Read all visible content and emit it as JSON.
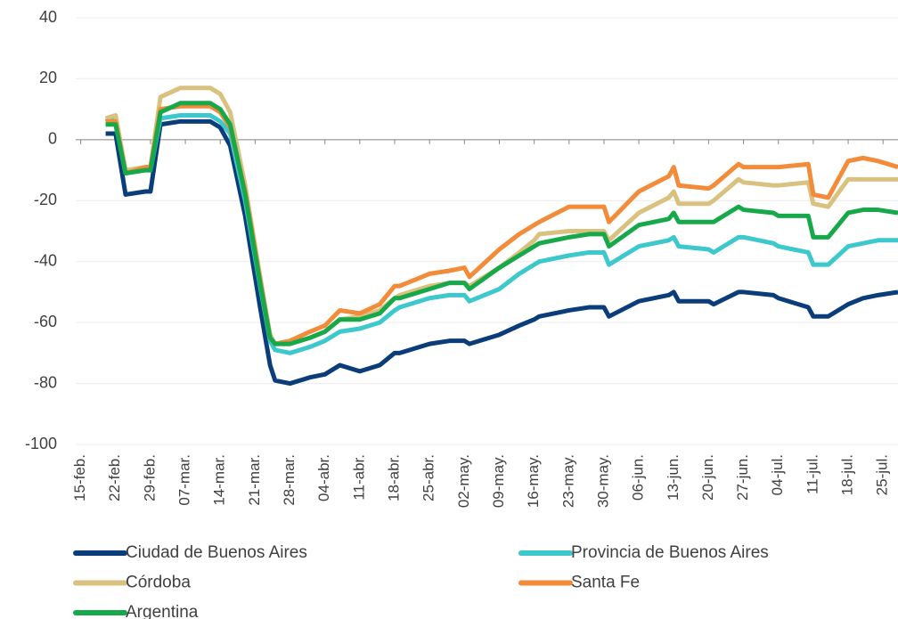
{
  "chart_data": {
    "type": "line",
    "x": [
      5,
      7,
      9,
      13,
      14,
      16,
      20,
      26,
      28,
      30,
      33,
      36,
      38,
      39,
      42,
      46,
      49,
      52,
      56,
      60,
      63,
      64,
      70,
      74,
      77,
      78,
      84,
      88,
      91,
      92,
      98,
      102,
      105,
      106,
      112,
      118,
      119,
      120,
      126,
      127,
      132,
      133,
      139,
      140,
      146,
      147,
      150,
      154,
      157,
      160,
      164
    ],
    "xlim": [
      -1,
      164
    ],
    "xticks": [
      {
        "value": 0,
        "label": "15-feb."
      },
      {
        "value": 7,
        "label": "22-feb."
      },
      {
        "value": 14,
        "label": "29-feb."
      },
      {
        "value": 21,
        "label": "07-mar."
      },
      {
        "value": 28,
        "label": "14-mar."
      },
      {
        "value": 35,
        "label": "21-mar."
      },
      {
        "value": 42,
        "label": "28-mar."
      },
      {
        "value": 49,
        "label": "04-abr."
      },
      {
        "value": 56,
        "label": "11-abr."
      },
      {
        "value": 63,
        "label": "18-abr."
      },
      {
        "value": 70,
        "label": "25-abr."
      },
      {
        "value": 77,
        "label": "02-may."
      },
      {
        "value": 84,
        "label": "09-may."
      },
      {
        "value": 91,
        "label": "16-may."
      },
      {
        "value": 98,
        "label": "23-may."
      },
      {
        "value": 105,
        "label": "30-may."
      },
      {
        "value": 112,
        "label": "06-jun."
      },
      {
        "value": 119,
        "label": "13-jun."
      },
      {
        "value": 126,
        "label": "20-jun."
      },
      {
        "value": 133,
        "label": "27-jun."
      },
      {
        "value": 140,
        "label": "04-jul."
      },
      {
        "value": 147,
        "label": "11-jul."
      },
      {
        "value": 154,
        "label": "18-jul."
      },
      {
        "value": 161,
        "label": "25-jul."
      }
    ],
    "ylim": [
      -100,
      40
    ],
    "yticks": [
      -100,
      -80,
      -60,
      -40,
      -20,
      0,
      20,
      40
    ],
    "grid": true,
    "legend": "bottom",
    "series": [
      {
        "name": "Ciudad de Buenos Aires",
        "color": "#0a3d7a",
        "values": [
          2,
          2,
          -18,
          -17,
          -17,
          5,
          6,
          6,
          4,
          -2,
          -25,
          -55,
          -74,
          -79,
          -80,
          -78,
          -77,
          -74,
          -76,
          -74,
          -70,
          -70,
          -67,
          -66,
          -66,
          -67,
          -64,
          -61,
          -59,
          -58,
          -56,
          -55,
          -55,
          -58,
          -53,
          -51,
          -50,
          -53,
          -53,
          -54,
          -50,
          -50,
          -51,
          -52,
          -55,
          -58,
          -58,
          -54,
          -52,
          -51,
          -50
        ]
      },
      {
        "name": "Provincia de Buenos Aires",
        "color": "#3cc8cc",
        "values": [
          6,
          7,
          -11,
          -10,
          -10,
          7,
          8,
          8,
          6,
          2,
          -20,
          -48,
          -66,
          -69,
          -70,
          -68,
          -66,
          -63,
          -62,
          -60,
          -56,
          -55,
          -52,
          -51,
          -51,
          -53,
          -49,
          -44,
          -41,
          -40,
          -38,
          -37,
          -37,
          -41,
          -35,
          -33,
          -32,
          -35,
          -36,
          -37,
          -32,
          -32,
          -34,
          -35,
          -37,
          -41,
          -41,
          -35,
          -34,
          -33,
          -33
        ]
      },
      {
        "name": "Córdoba",
        "color": "#d9c17f",
        "values": [
          7,
          8,
          -10,
          -9,
          -9,
          14,
          17,
          17,
          15,
          9,
          -15,
          -45,
          -64,
          -67,
          -67,
          -65,
          -63,
          -59,
          -58,
          -56,
          -52,
          -51,
          -48,
          -47,
          -47,
          -48,
          -42,
          -37,
          -33,
          -31,
          -30,
          -30,
          -30,
          -33,
          -24,
          -19,
          -17,
          -21,
          -21,
          -20,
          -13,
          -14,
          -15,
          -15,
          -14,
          -21,
          -22,
          -13,
          -13,
          -13,
          -13
        ]
      },
      {
        "name": "Santa Fe",
        "color": "#f28c3a",
        "values": [
          6,
          6,
          -11,
          -9,
          -9,
          10,
          11,
          11,
          9,
          4,
          -17,
          -46,
          -65,
          -67,
          -66,
          -63,
          -61,
          -56,
          -57,
          -54,
          -48,
          -48,
          -44,
          -43,
          -42,
          -45,
          -36,
          -31,
          -28,
          -27,
          -22,
          -22,
          -22,
          -27,
          -17,
          -12,
          -9,
          -15,
          -16,
          -15,
          -8,
          -9,
          -9,
          -9,
          -8,
          -18,
          -19,
          -7,
          -6,
          -7,
          -9
        ]
      },
      {
        "name": "Argentina",
        "color": "#17a84a",
        "values": [
          5,
          5,
          -11,
          -10,
          -10,
          9,
          12,
          12,
          10,
          5,
          -18,
          -47,
          -65,
          -67,
          -67,
          -65,
          -63,
          -59,
          -59,
          -57,
          -52,
          -52,
          -49,
          -47,
          -47,
          -49,
          -42,
          -38,
          -35,
          -34,
          -32,
          -31,
          -31,
          -35,
          -28,
          -26,
          -24,
          -27,
          -27,
          -27,
          -22,
          -23,
          -24,
          -25,
          -25,
          -32,
          -32,
          -24,
          -23,
          -23,
          -24
        ]
      }
    ]
  }
}
